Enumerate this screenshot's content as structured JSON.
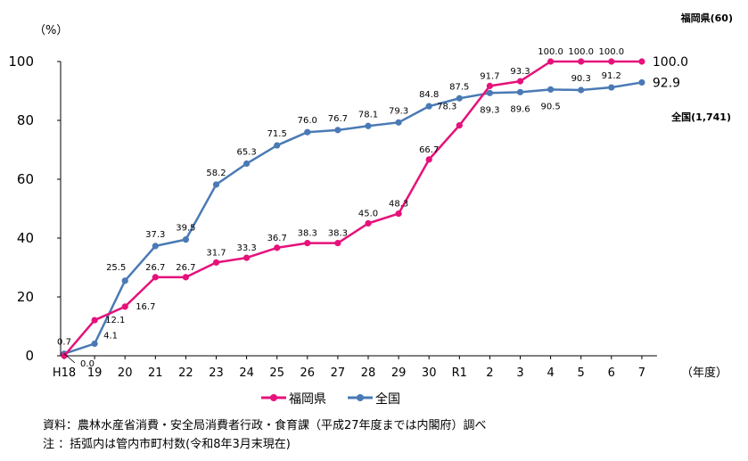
{
  "chart_data": {
    "type": "line",
    "y_unit": "（%）",
    "x_unit": "（年度）",
    "ylim": [
      0,
      100
    ],
    "yticks": [
      0,
      20,
      40,
      60,
      80,
      100
    ],
    "grid": false,
    "legend_position": "bottom",
    "categories": [
      "H18",
      "19",
      "20",
      "21",
      "22",
      "23",
      "24",
      "25",
      "26",
      "27",
      "28",
      "29",
      "30",
      "R1",
      "2",
      "3",
      "4",
      "5",
      "6",
      "7"
    ],
    "series": [
      {
        "name": "福岡県",
        "end_label": "福岡県(60)",
        "color": "#e6117a",
        "values": [
          0.0,
          12.1,
          16.7,
          26.7,
          26.7,
          31.7,
          33.3,
          36.7,
          38.3,
          38.3,
          45.0,
          48.3,
          66.7,
          78.3,
          91.7,
          93.3,
          100.0,
          100.0,
          100.0,
          100.0
        ],
        "labels": [
          "0.0",
          "12.1",
          "16.7",
          "26.7",
          "26.7",
          "31.7",
          "33.3",
          "36.7",
          "38.3",
          "38.3",
          "45.0",
          "48.3",
          "66.7",
          "78.3",
          "91.7",
          "93.3",
          "100.0",
          "100.0",
          "100.0",
          "100.0"
        ]
      },
      {
        "name": "全国",
        "end_label": "全国(1,741)",
        "color": "#4a7ab5",
        "values": [
          0.7,
          4.1,
          25.5,
          37.3,
          39.5,
          58.2,
          65.3,
          71.5,
          76.0,
          76.7,
          78.1,
          79.3,
          84.8,
          87.5,
          89.3,
          89.6,
          90.5,
          90.3,
          91.2,
          92.9
        ],
        "labels": [
          "0.7",
          "4.1",
          "25.5",
          "37.3",
          "39.5",
          "58.2",
          "65.3",
          "71.5",
          "76.0",
          "76.7",
          "78.1",
          "79.3",
          "84.8",
          "87.5",
          "89.3",
          "89.6",
          "90.5",
          "90.3",
          "91.2",
          "92.9"
        ]
      }
    ]
  },
  "notes": {
    "source": "資料：農林水産省消費・安全局消費者行政・食育課（平成27年度までは内閣府）調べ",
    "footnote": "注 ：括弧内は管内市町村数(令和8年3月末現在)"
  }
}
